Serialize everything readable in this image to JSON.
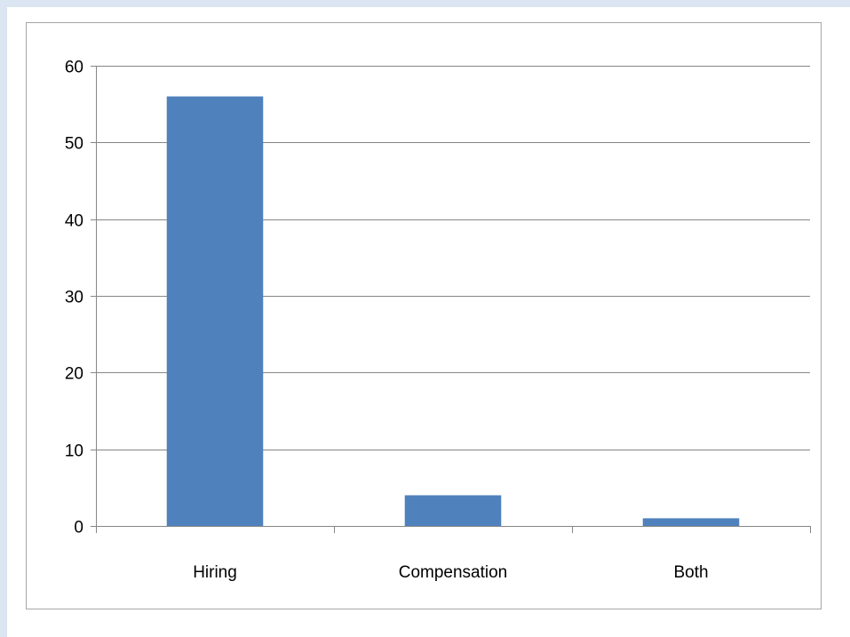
{
  "colors": {
    "bar": "#4f81bd",
    "gridline": "#868686",
    "axis": "#868686",
    "background": "#dce6f2"
  },
  "chart_data": {
    "type": "bar",
    "title": "",
    "xlabel": "",
    "ylabel": "",
    "categories": [
      "Hiring",
      "Compensation",
      "Both"
    ],
    "values": [
      56,
      4,
      1
    ],
    "ylim": [
      0,
      60
    ],
    "yticks": [
      0,
      10,
      20,
      30,
      40,
      50,
      60
    ],
    "ytick_labels": [
      "0",
      "10",
      "20",
      "30",
      "40",
      "50",
      "60"
    ],
    "grid": true,
    "legend": "none"
  }
}
